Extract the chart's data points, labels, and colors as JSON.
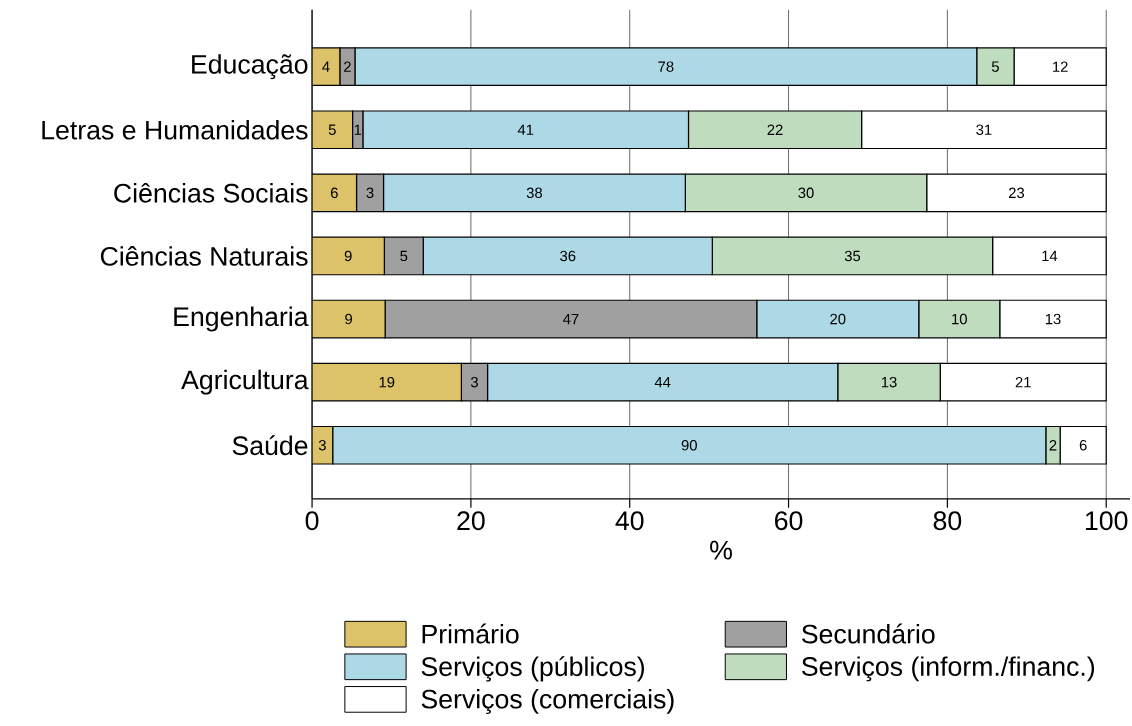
{
  "chart_data": {
    "type": "bar",
    "orientation": "horizontal",
    "stacked": true,
    "categories": [
      "Educação",
      "Letras e Humanidades",
      "Ciências Sociais",
      "Ciências Naturais",
      "Engenharia",
      "Agricultura",
      "Saúde"
    ],
    "xlabel": "%",
    "xlim": [
      0,
      103
    ],
    "xticks": [
      0,
      20,
      40,
      60,
      80,
      100
    ],
    "grid": "x",
    "legend": "bottom",
    "series": [
      {
        "name": "Primário",
        "color": "#dcc36a",
        "values": [
          3.5,
          5.1,
          5.6,
          9.1,
          9.2,
          18.8,
          2.6
        ],
        "value_labels": [
          "4",
          "5",
          "6",
          "9",
          "9",
          "19",
          "3"
        ]
      },
      {
        "name": "Secundário",
        "color": "#a0a0a0",
        "values": [
          1.9,
          1.3,
          3.4,
          4.9,
          46.8,
          3.3,
          0
        ],
        "value_labels": [
          "2",
          "1",
          "3",
          "5",
          "47",
          "3",
          null
        ]
      },
      {
        "name": "Serviços (públicos)",
        "color": "#add8e6",
        "values": [
          78.3,
          41.0,
          38.0,
          36.4,
          20.4,
          44.1,
          89.8
        ],
        "value_labels": [
          "78",
          "41",
          "38",
          "36",
          "20",
          "44",
          "90"
        ]
      },
      {
        "name": "Serviços (inform./financ.)",
        "color": "#bfdcbf",
        "values": [
          4.7,
          21.8,
          30.4,
          35.3,
          10.2,
          12.9,
          1.8
        ],
        "value_labels": [
          "5",
          "22",
          "30",
          "35",
          "10",
          "13",
          "2"
        ]
      },
      {
        "name": "Serviços (comerciais)",
        "color": "#ffffff",
        "values": [
          11.6,
          30.8,
          22.6,
          14.3,
          13.4,
          20.9,
          5.8
        ],
        "value_labels": [
          "12",
          "31",
          "23",
          "14",
          "13",
          "21",
          "6"
        ]
      }
    ]
  }
}
